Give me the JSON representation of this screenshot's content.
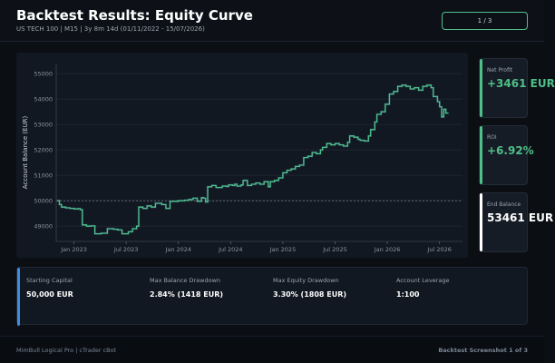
{
  "header": {
    "title": "Backtest Results: Equity Curve",
    "subtitle": "US TECH 100  |  M15  |  3y 8m 14d (01/11/2022 - 15/07/2026)",
    "page_indicator": "1 / 3"
  },
  "kpis": [
    {
      "label": "Net Profit",
      "value": "+3461 EUR",
      "color": "#4fbf8a"
    },
    {
      "label": "ROI",
      "value": "+6.92%",
      "color": "#4fbf8a"
    },
    {
      "label": "End Balance",
      "value": "53461 EUR",
      "color": "#ffffff"
    }
  ],
  "stats": {
    "starting_capital": {
      "label": "Starting Capital",
      "value": "50,000 EUR"
    },
    "max_balance_drawdown": {
      "label": "Max Balance Drawdown",
      "value": "2.84%  (1418 EUR)"
    },
    "max_equity_drawdown": {
      "label": "Max Equity Drawdown",
      "value": "3.30%  (1808 EUR)"
    },
    "account_leverage": {
      "label": "Account Leverage",
      "value": "1:100"
    }
  },
  "footer": {
    "left": "MimBull Logical Pro  |  cTrader cBot",
    "right": "Backtest Screenshot 1 of 3"
  },
  "colors": {
    "balance_line": "#4fbf8a",
    "equity_shadow": "#3a6a8a",
    "accent_blue": "#3d8ce0",
    "background": "#0b0f14"
  },
  "chart_data": {
    "type": "line",
    "ylabel": "Account Balance (EUR)",
    "xlabel": "",
    "ylim": [
      48400,
      55400
    ],
    "yticks": [
      49000,
      50000,
      51000,
      52000,
      53000,
      54000,
      55000
    ],
    "xticks": [
      {
        "label": "Jan 2023",
        "t": 2023.0
      },
      {
        "label": "Jul 2023",
        "t": 2023.5
      },
      {
        "label": "Jan 2024",
        "t": 2024.0
      },
      {
        "label": "Jul 2024",
        "t": 2024.5
      },
      {
        "label": "Jan 2025",
        "t": 2025.0
      },
      {
        "label": "Jul 2025",
        "t": 2025.5
      },
      {
        "label": "Jan 2026",
        "t": 2026.0
      },
      {
        "label": "Jul 2026",
        "t": 2026.5
      }
    ],
    "xlim": [
      2022.83,
      2026.72
    ],
    "baseline": 50000,
    "grid": true,
    "series": [
      {
        "values": [
          [
            2022.84,
            50000
          ],
          [
            2022.86,
            49850
          ],
          [
            2022.88,
            49750
          ],
          [
            2022.92,
            49720
          ],
          [
            2022.96,
            49700
          ],
          [
            2023.0,
            49680
          ],
          [
            2023.04,
            49690
          ],
          [
            2023.06,
            49650
          ],
          [
            2023.08,
            49050
          ],
          [
            2023.12,
            49000
          ],
          [
            2023.16,
            49010
          ],
          [
            2023.2,
            48700
          ],
          [
            2023.26,
            48720
          ],
          [
            2023.3,
            48720
          ],
          [
            2023.32,
            48900
          ],
          [
            2023.38,
            48880
          ],
          [
            2023.42,
            48850
          ],
          [
            2023.46,
            48700
          ],
          [
            2023.52,
            48780
          ],
          [
            2023.56,
            48900
          ],
          [
            2023.6,
            49000
          ],
          [
            2023.62,
            49750
          ],
          [
            2023.66,
            49700
          ],
          [
            2023.7,
            49800
          ],
          [
            2023.74,
            49750
          ],
          [
            2023.78,
            49900
          ],
          [
            2023.84,
            49850
          ],
          [
            2023.88,
            49700
          ],
          [
            2023.92,
            49980
          ],
          [
            2024.0,
            50000
          ],
          [
            2024.06,
            50020
          ],
          [
            2024.1,
            50050
          ],
          [
            2024.14,
            50100
          ],
          [
            2024.18,
            49980
          ],
          [
            2024.22,
            50120
          ],
          [
            2024.24,
            50100
          ],
          [
            2024.26,
            49950
          ],
          [
            2024.28,
            50550
          ],
          [
            2024.32,
            50600
          ],
          [
            2024.36,
            50520
          ],
          [
            2024.42,
            50580
          ],
          [
            2024.46,
            50560
          ],
          [
            2024.48,
            50620
          ],
          [
            2024.52,
            50600
          ],
          [
            2024.54,
            50650
          ],
          [
            2024.56,
            50580
          ],
          [
            2024.6,
            50620
          ],
          [
            2024.62,
            50800
          ],
          [
            2024.66,
            50600
          ],
          [
            2024.7,
            50650
          ],
          [
            2024.74,
            50700
          ],
          [
            2024.78,
            50650
          ],
          [
            2024.82,
            50750
          ],
          [
            2024.86,
            50550
          ],
          [
            2024.88,
            50750
          ],
          [
            2024.92,
            50800
          ],
          [
            2024.96,
            50900
          ],
          [
            2025.0,
            51100
          ],
          [
            2025.04,
            51200
          ],
          [
            2025.08,
            51250
          ],
          [
            2025.12,
            51350
          ],
          [
            2025.16,
            51400
          ],
          [
            2025.2,
            51700
          ],
          [
            2025.24,
            51750
          ],
          [
            2025.28,
            51900
          ],
          [
            2025.32,
            51850
          ],
          [
            2025.36,
            52000
          ],
          [
            2025.38,
            52100
          ],
          [
            2025.42,
            52250
          ],
          [
            2025.46,
            52200
          ],
          [
            2025.5,
            52250
          ],
          [
            2025.54,
            52200
          ],
          [
            2025.58,
            52150
          ],
          [
            2025.62,
            52300
          ],
          [
            2025.64,
            52550
          ],
          [
            2025.68,
            52500
          ],
          [
            2025.72,
            52420
          ],
          [
            2025.74,
            52380
          ],
          [
            2025.78,
            52350
          ],
          [
            2025.82,
            52550
          ],
          [
            2025.84,
            52800
          ],
          [
            2025.88,
            53100
          ],
          [
            2025.9,
            53400
          ],
          [
            2025.94,
            53500
          ],
          [
            2025.98,
            53800
          ],
          [
            2026.02,
            54200
          ],
          [
            2026.06,
            54300
          ],
          [
            2026.1,
            54500
          ],
          [
            2026.14,
            54550
          ],
          [
            2026.18,
            54500
          ],
          [
            2026.22,
            54400
          ],
          [
            2026.26,
            54450
          ],
          [
            2026.3,
            54350
          ],
          [
            2026.34,
            54500
          ],
          [
            2026.38,
            54550
          ],
          [
            2026.42,
            54450
          ],
          [
            2026.44,
            54100
          ],
          [
            2026.48,
            53900
          ],
          [
            2026.5,
            53700
          ],
          [
            2026.52,
            53300
          ],
          [
            2026.54,
            53600
          ],
          [
            2026.56,
            53450
          ],
          [
            2026.58,
            53461
          ]
        ]
      }
    ]
  }
}
